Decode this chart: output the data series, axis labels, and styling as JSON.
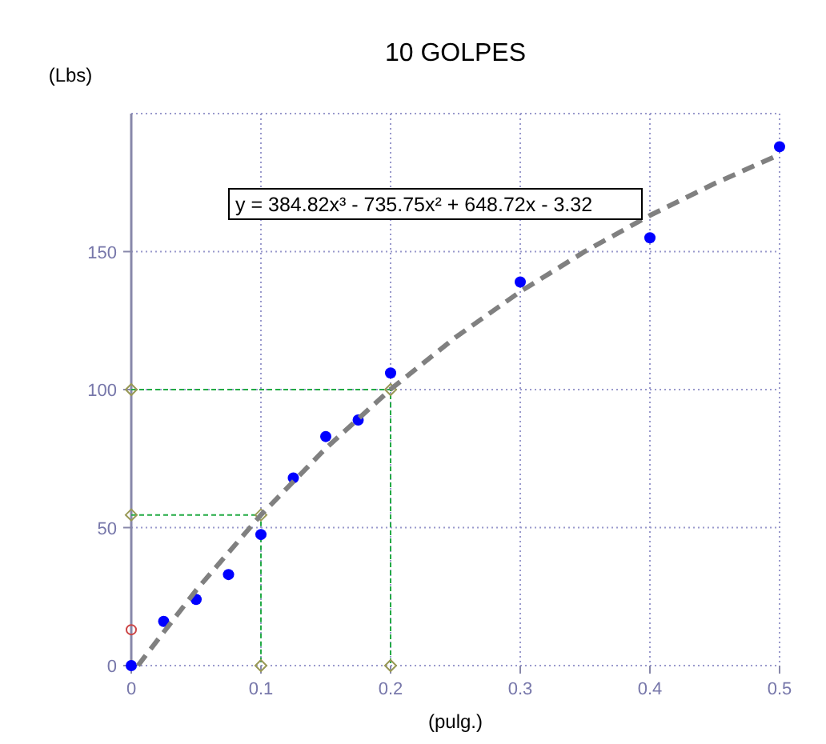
{
  "chart_data": {
    "type": "scatter",
    "title": "10 GOLPES",
    "xlabel": "(pulg.)",
    "ylabel": "(Lbs)",
    "xlim": [
      0,
      0.5
    ],
    "xticks": [
      0,
      0.1,
      0.2,
      0.3,
      0.4,
      0.5
    ],
    "ylim": [
      0,
      200
    ],
    "yticks": [
      0,
      50,
      100,
      150
    ],
    "grid": true,
    "annotations": [
      "y = 384.82x³ - 735.75x² + 648.72x - 3.32"
    ],
    "series": [
      {
        "type": "line",
        "color": "#22aa44",
        "line_style": "dashed",
        "marker": "diamond",
        "x": [
          0,
          0.1,
          0.1
        ],
        "values": [
          54.6,
          54.6,
          0
        ]
      },
      {
        "type": "line",
        "color": "#22aa44",
        "line_style": "dashed",
        "marker": "diamond",
        "x": [
          0,
          0.2,
          0.2
        ],
        "values": [
          100,
          100,
          0
        ]
      },
      {
        "color": "#cc4444",
        "marker": "circle",
        "x": [
          0
        ],
        "values": [
          13
        ]
      },
      {
        "color": "#0000ff",
        "marker": "circle",
        "x": [
          0,
          0.025,
          0.05,
          0.075,
          0.1,
          0.125,
          0.15,
          0.175,
          0.2,
          0.3,
          0.4,
          0.5
        ],
        "values": [
          0,
          16,
          24,
          33,
          47.5,
          68,
          83,
          89,
          106,
          139,
          155,
          188
        ]
      },
      {
        "type": "line",
        "color": "#808080",
        "line_style": "dashed",
        "marker": "none",
        "x": [
          0.0052,
          0.01,
          0.05,
          0.1,
          0.15,
          0.2,
          0.25,
          0.3,
          0.35,
          0.4,
          0.45,
          0.5
        ],
        "values": [
          0,
          3,
          27.3,
          54.6,
          78.7,
          100.1,
          118.9,
          135.5,
          150.1,
          163.1,
          174.7,
          185.2
        ]
      }
    ]
  }
}
